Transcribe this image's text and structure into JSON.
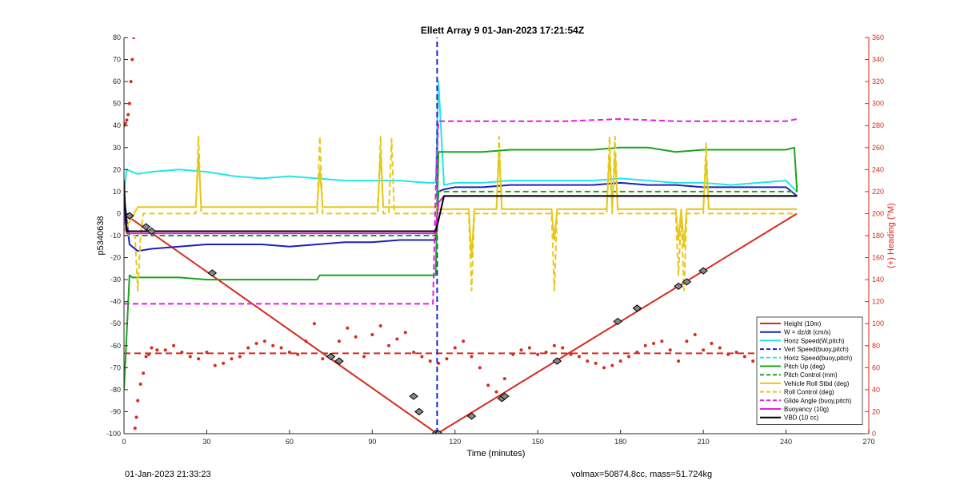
{
  "chart_data": {
    "type": "line",
    "title": "Ellett Array 9 01-Jan-2023 17:21:54Z",
    "xlabel": "Time (minutes)",
    "ylabel": "p5340638",
    "y2label": "(+) Heading (°M)",
    "xlim": [
      0,
      270
    ],
    "ylim": [
      -100,
      80
    ],
    "y2lim": [
      0,
      360
    ],
    "xticks": [
      0,
      30,
      60,
      90,
      120,
      150,
      180,
      210,
      240,
      270
    ],
    "yticks": [
      -100,
      -90,
      -80,
      -70,
      -60,
      -50,
      -40,
      -30,
      -20,
      -10,
      0,
      10,
      20,
      30,
      40,
      50,
      60,
      70,
      80
    ],
    "y2ticks": [
      0,
      20,
      40,
      60,
      80,
      100,
      120,
      140,
      160,
      180,
      200,
      220,
      240,
      260,
      280,
      300,
      320,
      340,
      360
    ],
    "grid": false,
    "legend_position": "bottom-right",
    "series": [
      {
        "name": "Height (10m)",
        "color": "#d62a1e",
        "style": "solid",
        "x": [
          0,
          113.5,
          244
        ],
        "y": [
          0,
          -100,
          0
        ]
      },
      {
        "name": "W = dz/dt (cm/s)",
        "color": "#1a22b8",
        "style": "solid",
        "x": [
          0,
          2,
          5,
          10,
          20,
          30,
          40,
          50,
          60,
          70,
          80,
          90,
          100,
          110,
          113,
          114,
          116,
          120,
          130,
          140,
          150,
          160,
          170,
          180,
          190,
          200,
          210,
          220,
          230,
          240,
          244
        ],
        "y": [
          8,
          -14,
          -17,
          -16,
          -15,
          -14,
          -14,
          -14,
          -15,
          -14,
          -13,
          -13,
          -12,
          -12,
          -12,
          10,
          11,
          12,
          12,
          13,
          13,
          13,
          13,
          14,
          13,
          13,
          12,
          12,
          12,
          12,
          8
        ]
      },
      {
        "name": "Horiz Speed(W,pitch)",
        "color": "#22e6e6",
        "style": "solid",
        "x": [
          0,
          1,
          5,
          10,
          20,
          30,
          40,
          50,
          60,
          70,
          80,
          90,
          100,
          110,
          113,
          114,
          116,
          120,
          130,
          140,
          150,
          160,
          170,
          180,
          190,
          200,
          210,
          220,
          230,
          240,
          244
        ],
        "y": [
          10,
          20,
          18,
          19,
          20,
          19,
          17,
          16,
          17,
          16,
          15,
          15,
          15,
          14,
          14,
          60,
          13,
          14,
          14,
          15,
          15,
          15,
          15,
          16,
          15,
          14,
          14,
          13,
          14,
          15,
          10
        ]
      },
      {
        "name": "Vert Speed(buoy,pitch)",
        "color": "#1a22d0",
        "style": "dashed",
        "x": [
          113.5,
          113.5
        ],
        "y": [
          -100,
          80
        ]
      },
      {
        "name": "Horiz Speed(buoy,pitch)",
        "color": "#22e6e6",
        "style": "dashed",
        "x": [],
        "y": []
      },
      {
        "name": "Pitch Up (deg)",
        "color": "#1aa51a",
        "style": "solid",
        "x": [
          0,
          2,
          3,
          10,
          20,
          30,
          40,
          60,
          70,
          71,
          80,
          100,
          113,
          114,
          120,
          130,
          140,
          150,
          160,
          170,
          180,
          190,
          200,
          210,
          220,
          230,
          240,
          243,
          244
        ],
        "y": [
          -80,
          -28,
          -29,
          -29,
          -29,
          -30,
          -30,
          -30,
          -30,
          -28,
          -28,
          -28,
          -28,
          28,
          28,
          28,
          29,
          29,
          29,
          29,
          30,
          30,
          28,
          29,
          29,
          29,
          29,
          30,
          10
        ]
      },
      {
        "name": "Pitch Control (mm)",
        "color": "#1aa51a",
        "style": "dashed",
        "x": [
          0,
          2,
          113,
          114,
          244
        ],
        "y": [
          0,
          -10,
          -10,
          10,
          10
        ]
      },
      {
        "name": "Vehicle Roll Stbd (deg)",
        "color": "#e6c81a",
        "style": "solid",
        "x": [
          0,
          5,
          10,
          26,
          27,
          28,
          70,
          71,
          72,
          92,
          93,
          94,
          113,
          114,
          125,
          126,
          127,
          135,
          136,
          137,
          155,
          156,
          157,
          175,
          176,
          177,
          178,
          179,
          180,
          200,
          201,
          202,
          203,
          204,
          205,
          210,
          211,
          212,
          244
        ],
        "y": [
          -8,
          3,
          3,
          3,
          27,
          3,
          3,
          20,
          3,
          3,
          28,
          3,
          3,
          2,
          2,
          -20,
          2,
          2,
          28,
          2,
          2,
          -12,
          2,
          2,
          27,
          2,
          27,
          2,
          2,
          2,
          -12,
          2,
          -15,
          2,
          2,
          2,
          25,
          2,
          2
        ]
      },
      {
        "name": "Roll Control (deg)",
        "color": "#e6c81a",
        "style": "dashed",
        "x": [
          0,
          4,
          5,
          6,
          7,
          10,
          26,
          27,
          28,
          70,
          71,
          72,
          92,
          93,
          94,
          96,
          97,
          98,
          113,
          114,
          125,
          126,
          127,
          135,
          136,
          137,
          155,
          156,
          157,
          175,
          176,
          177,
          178,
          179,
          180,
          200,
          201,
          202,
          203,
          204,
          205,
          210,
          211,
          212,
          244
        ],
        "y": [
          -10,
          -10,
          -35,
          -10,
          0,
          0,
          0,
          35,
          0,
          0,
          35,
          0,
          0,
          35,
          0,
          0,
          34,
          0,
          0,
          0,
          0,
          -35,
          0,
          0,
          35,
          0,
          0,
          -35,
          0,
          0,
          35,
          0,
          35,
          0,
          0,
          0,
          -28,
          0,
          -35,
          0,
          0,
          0,
          32,
          0,
          0
        ]
      },
      {
        "name": "Glide Angle (buoy,pitch)",
        "color": "#e61ae6",
        "style": "dashed",
        "x": [
          0,
          10,
          20,
          40,
          60,
          80,
          100,
          112,
          113,
          114,
          120,
          140,
          160,
          180,
          200,
          220,
          240,
          244
        ],
        "y": [
          -41,
          -41,
          -41,
          -41,
          -41,
          -41,
          -41,
          -41,
          10,
          42,
          42,
          42,
          42,
          43,
          42,
          42,
          42,
          43
        ]
      },
      {
        "name": "Buoyancy (10g)",
        "color": "#e61ae6",
        "style": "solid",
        "x": [
          0,
          1,
          113,
          114,
          116,
          244
        ],
        "y": [
          0,
          -9,
          -9,
          5,
          8,
          8
        ]
      },
      {
        "name": "VBD (10 cc)",
        "color": "#000000",
        "style": "solid",
        "x": [
          0,
          0.5,
          1,
          113,
          114,
          116,
          244
        ],
        "y": [
          15,
          0,
          -8,
          -8,
          -3,
          8,
          8
        ]
      }
    ],
    "heading_series": {
      "name": "Heading",
      "color": "#d62a1e",
      "axis": "right",
      "x": [
        0,
        0.5,
        1,
        1.5,
        2,
        2.5,
        3,
        3.5,
        4,
        4.5,
        5,
        6,
        7,
        8,
        9,
        10,
        12,
        15,
        18,
        21,
        24,
        27,
        30,
        33,
        36,
        39,
        42,
        45,
        48,
        51,
        54,
        57,
        60,
        63,
        66,
        69,
        72,
        75,
        78,
        81,
        84,
        87,
        90,
        93,
        96,
        99,
        102,
        105,
        108,
        111,
        114,
        117,
        120,
        123,
        126,
        129,
        132,
        135,
        138,
        141,
        144,
        147,
        150,
        153,
        156,
        159,
        162,
        165,
        168,
        171,
        174,
        177,
        180,
        183,
        186,
        189,
        192,
        195,
        198,
        201,
        204,
        207,
        210,
        213,
        216,
        219,
        222,
        225,
        228,
        231,
        234,
        237,
        240
      ],
      "y": [
        280,
        282,
        285,
        290,
        300,
        320,
        340,
        360,
        5,
        15,
        30,
        45,
        55,
        70,
        72,
        78,
        76,
        76,
        80,
        74,
        70,
        68,
        74,
        62,
        64,
        68,
        70,
        78,
        82,
        84,
        80,
        78,
        74,
        72,
        84,
        100,
        68,
        72,
        84,
        96,
        88,
        70,
        90,
        98,
        80,
        86,
        92,
        74,
        70,
        66,
        64,
        68,
        78,
        84,
        70,
        60,
        44,
        38,
        50,
        72,
        76,
        78,
        72,
        74,
        80,
        78,
        72,
        70,
        66,
        64,
        60,
        62,
        66,
        70,
        74,
        80,
        82,
        84,
        76,
        66,
        84,
        90,
        76,
        82,
        78,
        72,
        74,
        70,
        66,
        60,
        70,
        66,
        72
      ],
      "reference_value": 73
    },
    "markers": {
      "x": [
        2,
        8,
        10,
        32,
        75,
        78,
        105,
        107,
        113,
        114,
        126,
        137,
        138,
        157,
        179,
        186,
        201,
        204,
        210
      ],
      "y": [
        -1,
        -6,
        -8,
        -27,
        -65,
        -67,
        -83,
        -90,
        -100,
        -100,
        -92,
        -84,
        -83,
        -67,
        -49,
        -43,
        -33,
        -31,
        -26
      ]
    },
    "annotations": {
      "footer_left": "01-Jan-2023 21:33:23",
      "footer_right": "volmax=50874.8cc, mass=51.724kg"
    }
  }
}
